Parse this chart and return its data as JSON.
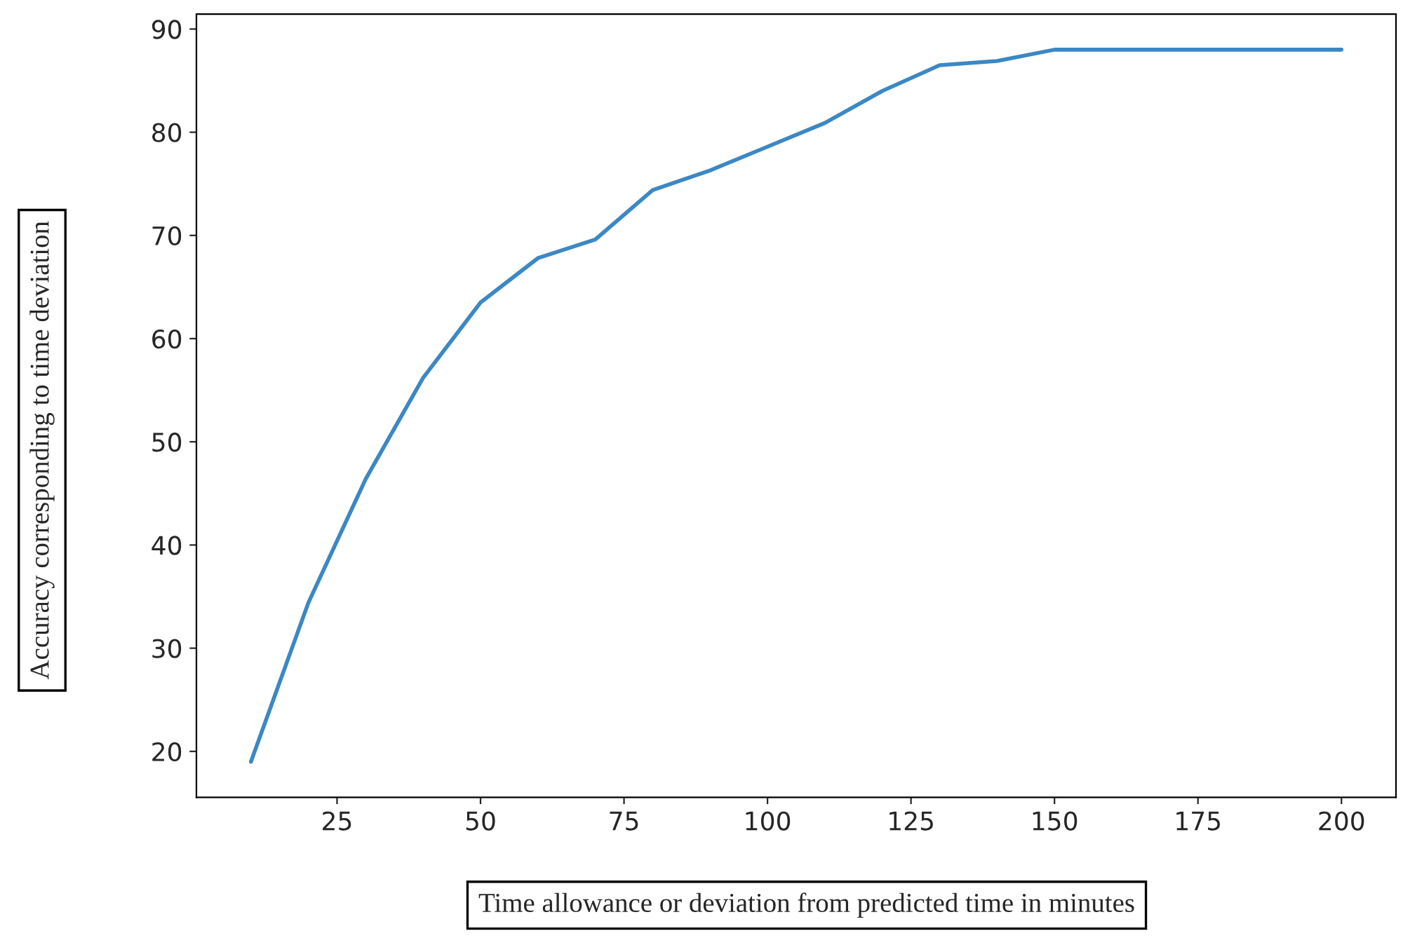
{
  "chart_data": {
    "type": "line",
    "xlabel": "Time allowance or deviation from predicted time in minutes",
    "ylabel": "Accuracy corresponding to time deviation",
    "x": [
      10,
      20,
      30,
      40,
      50,
      60,
      70,
      80,
      90,
      100,
      110,
      120,
      130,
      140,
      150,
      160,
      170,
      180,
      190,
      200
    ],
    "series": [
      {
        "color": "#3b88c4",
        "values": [
          19.0,
          34.4,
          46.4,
          56.2,
          63.5,
          67.8,
          69.6,
          74.4,
          76.3,
          78.6,
          80.9,
          84.0,
          86.5,
          86.9,
          88.0,
          88.0,
          88.0,
          88.0,
          88.0,
          88.0
        ]
      }
    ],
    "xlim": [
      0.5,
      209.5
    ],
    "xticks": [
      25,
      50,
      75,
      100,
      125,
      150,
      175,
      200
    ],
    "ylim": [
      15.55,
      91.45
    ],
    "yticks": [
      20,
      30,
      40,
      50,
      60,
      70,
      80,
      90
    ],
    "grid": false,
    "legend": false,
    "marker": "none",
    "line_style": "solid"
  }
}
